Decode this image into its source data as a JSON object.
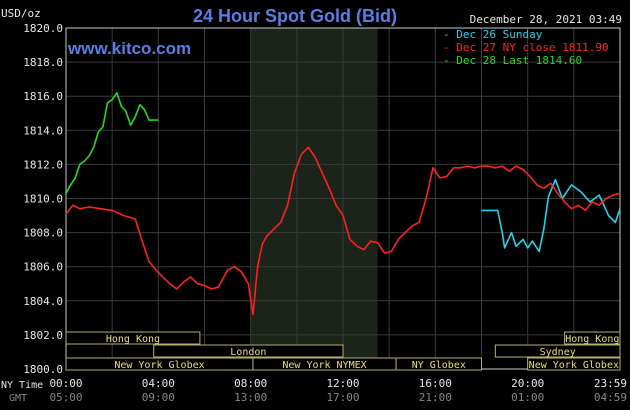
{
  "header": {
    "title": "24 Hour Spot Gold (Bid)",
    "unit": "USD/oz",
    "timestamp": "December 28, 2021 03:49",
    "watermark": "www.kitco.com"
  },
  "legend": [
    {
      "label": "Dec 26 Sunday",
      "color": "#22d3ee"
    },
    {
      "label": "Dec 27 NY close 1811.90",
      "color": "#ff2020"
    },
    {
      "label": "Dec 28 Last 1814.60",
      "color": "#22dd22"
    }
  ],
  "footer": {
    "ny_time_label": "NY Time",
    "gmt_label": "GMT",
    "ny_ticks": [
      "00:00",
      "04:00",
      "08:00",
      "12:00",
      "16:00",
      "20:00",
      "23:59"
    ],
    "gmt_ticks": [
      "05:00",
      "09:00",
      "13:00",
      "17:00",
      "21:00",
      "01:00",
      "04:59"
    ]
  },
  "sessions": [
    {
      "label": "Hong Kong",
      "start": 0,
      "end": 5.8,
      "row": 0
    },
    {
      "label": "Hong Kong",
      "start": 21.6,
      "end": 24,
      "row": 0
    },
    {
      "label": "London",
      "start": 3.8,
      "end": 12.0,
      "row": 1
    },
    {
      "label": "Sydney",
      "start": 18.6,
      "end": 24,
      "row": 1
    },
    {
      "label": "New York Globex",
      "start": 0,
      "end": 8.1,
      "row": 2
    },
    {
      "label": "New York NYMEX",
      "start": 8.1,
      "end": 14.3,
      "row": 2
    },
    {
      "label": "NY Globex",
      "start": 14.3,
      "end": 18.0,
      "row": 2
    },
    {
      "label": "New York Globex",
      "start": 20.0,
      "end": 24,
      "row": 2
    }
  ],
  "chart_data": {
    "type": "line",
    "title": "24 Hour Spot Gold (Bid)",
    "ylabel": "USD/oz",
    "xlabel": "NY Time",
    "ylim": [
      1800.0,
      1820.0
    ],
    "xlim": [
      0,
      24
    ],
    "yticks": [
      "1800.0",
      "1802.0",
      "1804.0",
      "1806.0",
      "1808.0",
      "1810.0",
      "1812.0",
      "1814.0",
      "1816.0",
      "1818.0",
      "1820.0"
    ],
    "grid": true,
    "legend_position": "top-right",
    "shaded_x_range": [
      8.0,
      13.5
    ],
    "series": [
      {
        "name": "Dec 26 Sunday",
        "color": "#22d3ee",
        "x": [
          18.0,
          18.7,
          18.9,
          19.0,
          19.3,
          19.5,
          19.8,
          20.0,
          20.2,
          20.5,
          20.7,
          20.9,
          21.2,
          21.5,
          21.9,
          22.3,
          22.7,
          23.1,
          23.5,
          23.8,
          24.0
        ],
        "y": [
          1809.3,
          1809.3,
          1808.0,
          1807.1,
          1808.0,
          1807.2,
          1807.6,
          1807.1,
          1807.5,
          1806.9,
          1808.2,
          1810.1,
          1811.1,
          1810.0,
          1810.8,
          1810.4,
          1809.8,
          1810.2,
          1809.0,
          1808.6,
          1809.4
        ]
      },
      {
        "name": "Dec 27 NY close 1811.90",
        "color": "#ff2020",
        "x": [
          0.0,
          0.3,
          0.6,
          1.0,
          1.5,
          2.0,
          2.5,
          3.0,
          3.3,
          3.6,
          3.9,
          4.2,
          4.5,
          4.8,
          5.1,
          5.4,
          5.7,
          6.0,
          6.3,
          6.6,
          7.0,
          7.3,
          7.6,
          7.9,
          8.1,
          8.3,
          8.5,
          8.7,
          9.0,
          9.3,
          9.6,
          9.9,
          10.2,
          10.5,
          10.8,
          11.1,
          11.4,
          11.7,
          12.0,
          12.3,
          12.6,
          12.9,
          13.2,
          13.5,
          13.8,
          14.1,
          14.4,
          14.7,
          15.0,
          15.3,
          15.6,
          15.9,
          16.2,
          16.5,
          16.8,
          17.1,
          17.4,
          17.7,
          18.0,
          18.3,
          18.6,
          18.9,
          19.2,
          19.5,
          19.8,
          20.1,
          20.4,
          20.7,
          21.0,
          21.3,
          21.6,
          21.9,
          22.2,
          22.5,
          22.8,
          23.1,
          23.4,
          23.7,
          24.0
        ],
        "y": [
          1809.1,
          1809.6,
          1809.4,
          1809.5,
          1809.4,
          1809.3,
          1809.0,
          1808.8,
          1807.5,
          1806.3,
          1805.8,
          1805.4,
          1805.0,
          1804.7,
          1805.1,
          1805.4,
          1805.0,
          1804.9,
          1804.7,
          1804.8,
          1805.8,
          1806.0,
          1805.7,
          1805.0,
          1803.2,
          1806.0,
          1807.3,
          1807.8,
          1808.2,
          1808.6,
          1809.6,
          1811.5,
          1812.6,
          1813.0,
          1812.4,
          1811.5,
          1810.6,
          1809.6,
          1809.0,
          1807.6,
          1807.2,
          1807.0,
          1807.5,
          1807.4,
          1806.8,
          1806.9,
          1807.6,
          1808.0,
          1808.4,
          1808.6,
          1810.0,
          1811.8,
          1811.2,
          1811.3,
          1811.8,
          1811.8,
          1811.9,
          1811.8,
          1811.9,
          1811.9,
          1811.8,
          1811.9,
          1811.6,
          1811.9,
          1811.7,
          1811.3,
          1810.8,
          1810.6,
          1810.9,
          1810.3,
          1809.8,
          1809.4,
          1809.6,
          1809.3,
          1809.8,
          1809.6,
          1810.0,
          1810.2,
          1810.3
        ]
      },
      {
        "name": "Dec 28 Last 1814.60",
        "color": "#22dd22",
        "x": [
          0.0,
          0.2,
          0.4,
          0.6,
          0.8,
          1.0,
          1.2,
          1.4,
          1.6,
          1.8,
          2.0,
          2.2,
          2.4,
          2.6,
          2.8,
          3.0,
          3.2,
          3.4,
          3.6,
          3.8,
          4.0
        ],
        "y": [
          1810.3,
          1810.8,
          1811.2,
          1812.0,
          1812.2,
          1812.5,
          1813.0,
          1813.9,
          1814.2,
          1815.6,
          1815.8,
          1816.2,
          1815.4,
          1815.1,
          1814.3,
          1814.8,
          1815.5,
          1815.2,
          1814.6,
          1814.6,
          1814.6
        ]
      }
    ]
  }
}
